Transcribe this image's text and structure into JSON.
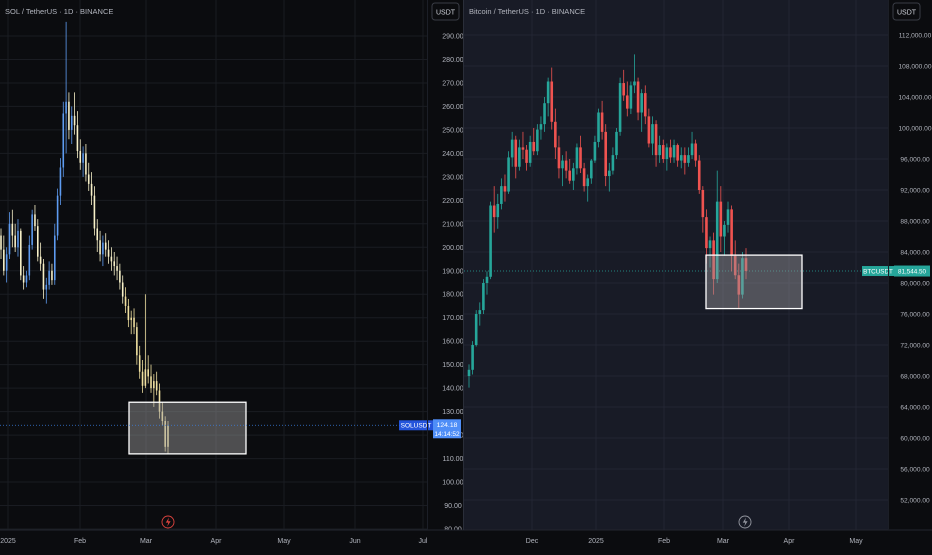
{
  "chart_data": [
    {
      "type": "candlestick",
      "title": "SOL / TetherUS · 1D · BINANCE",
      "currency_label": "USDT",
      "ylim": [
        80,
        300
      ],
      "y_ticks": [
        "290.00",
        "280.00",
        "270.00",
        "260.00",
        "250.00",
        "240.00",
        "230.00",
        "220.00",
        "210.00",
        "200.00",
        "190.00",
        "180.00",
        "170.00",
        "160.00",
        "150.00",
        "140.00",
        "130.00",
        "120.00",
        "110.00",
        "100.00",
        "90.00",
        "80.00"
      ],
      "x_ticks": [
        "2025",
        "Feb",
        "Mar",
        "Apr",
        "May",
        "Jun",
        "Jul"
      ],
      "price_tag": {
        "symbol": "SOLUSDT",
        "price": "124.18",
        "countdown": "14:14:52",
        "value": 124.18
      },
      "highlight_box": {
        "y_top": 134,
        "y_bottom": 112
      },
      "series": [
        {
          "values": [
            [
              205,
              208,
              195,
              199
            ],
            [
              199,
              205,
              188,
              190
            ],
            [
              190,
              200,
              185,
              197
            ],
            [
              197,
              215,
              195,
              210
            ],
            [
              210,
              216,
              200,
              205
            ],
            [
              205,
              210,
              198,
              200
            ],
            [
              200,
              212,
              196,
              207
            ],
            [
              207,
              208,
              186,
              188
            ],
            [
              188,
              192,
              182,
              185
            ],
            [
              185,
              190,
              183,
              188
            ],
            [
              188,
              205,
              186,
              201
            ],
            [
              201,
              216,
              199,
              214
            ],
            [
              214,
              218,
              207,
              209
            ],
            [
              209,
              212,
              194,
              196
            ],
            [
              196,
              202,
              190,
              193
            ],
            [
              193,
              195,
              178,
              182
            ],
            [
              182,
              187,
              176,
              184
            ],
            [
              184,
              194,
              182,
              190
            ],
            [
              190,
              193,
              184,
              186
            ],
            [
              186,
              210,
              184,
              205
            ],
            [
              205,
              225,
              203,
              222
            ],
            [
              222,
              238,
              218,
              234
            ],
            [
              234,
              262,
              230,
              257
            ],
            [
              257,
              296,
              240,
              262
            ],
            [
              262,
              266,
              246,
              250
            ],
            [
              250,
              260,
              244,
              256
            ],
            [
              256,
              266,
              248,
              252
            ],
            [
              252,
              258,
              238,
              241
            ],
            [
              241,
              246,
              233,
              236
            ],
            [
              236,
              243,
              230,
              240
            ],
            [
              240,
              244,
              228,
              231
            ],
            [
              231,
              236,
              224,
              227
            ],
            [
              227,
              232,
              218,
              222
            ],
            [
              222,
              226,
              205,
              208
            ],
            [
              208,
              212,
              198,
              203
            ],
            [
              203,
              207,
              194,
              197
            ],
            [
              197,
              205,
              192,
              202
            ],
            [
              202,
              206,
              196,
              199
            ],
            [
              199,
              203,
              193,
              196
            ],
            [
              196,
              200,
              190,
              194
            ],
            [
              194,
              198,
              188,
              192
            ],
            [
              192,
              196,
              186,
              190
            ],
            [
              190,
              193,
              182,
              185
            ],
            [
              185,
              188,
              176,
              179
            ],
            [
              179,
              183,
              172,
              175
            ],
            [
              175,
              178,
              166,
              169
            ],
            [
              169,
              173,
              163,
              170
            ],
            [
              170,
              174,
              163,
              166
            ],
            [
              166,
              168,
              150,
              154
            ],
            [
              154,
              158,
              144,
              147
            ],
            [
              147,
              152,
              138,
              141
            ],
            [
              141,
              180,
              140,
              148
            ],
            [
              148,
              154,
              142,
              145
            ],
            [
              145,
              150,
              138,
              140
            ],
            [
              140,
              146,
              132,
              143
            ],
            [
              143,
              147,
              137,
              139
            ],
            [
              139,
              142,
              127,
              130
            ],
            [
              130,
              134,
              124,
              126
            ],
            [
              126,
              128,
              113,
              115
            ],
            [
              115,
              126,
              112,
              124
            ]
          ]
        }
      ]
    },
    {
      "type": "candlestick",
      "title": "Bitcoin / TetherUS · 1D · BINANCE",
      "currency_label": "USDT",
      "ylim": [
        49000,
        114000
      ],
      "y_ticks": [
        "112,000.00",
        "108,000.00",
        "104,000.00",
        "100,000.00",
        "96,000.00",
        "92,000.00",
        "88,000.00",
        "84,000.00",
        "80,000.00",
        "76,000.00",
        "72,000.00",
        "68,000.00",
        "64,000.00",
        "60,000.00",
        "56,000.00",
        "52,000.00"
      ],
      "x_ticks": [
        "Dec",
        "2025",
        "Feb",
        "Mar",
        "Apr",
        "May"
      ],
      "price_tag": {
        "symbol": "BTCUSDT",
        "price": "81,544.50",
        "value": 81544.5
      },
      "highlight_box": {
        "y_top": 83600,
        "y_bottom": 76700
      },
      "series": [
        {
          "values": [
            [
              68000,
              69500,
              66500,
              68800
            ],
            [
              68800,
              72500,
              68200,
              72000
            ],
            [
              72000,
              76500,
              71800,
              76000
            ],
            [
              76000,
              77500,
              74500,
              76500
            ],
            [
              76500,
              80500,
              76000,
              80000
            ],
            [
              80000,
              81500,
              78500,
              80800
            ],
            [
              80800,
              90500,
              80500,
              90000
            ],
            [
              90000,
              92500,
              86500,
              88500
            ],
            [
              88500,
              91500,
              87000,
              90200
            ],
            [
              90200,
              93500,
              89500,
              92500
            ],
            [
              92500,
              94000,
              90500,
              91800
            ],
            [
              91800,
              97000,
              91500,
              96200
            ],
            [
              96200,
              99500,
              95000,
              98500
            ],
            [
              98500,
              99000,
              93500,
              95000
            ],
            [
              95000,
              98500,
              94500,
              97500
            ],
            [
              97500,
              99500,
              96000,
              97200
            ],
            [
              97200,
              97800,
              94500,
              95500
            ],
            [
              95500,
              99000,
              95000,
              98200
            ],
            [
              98200,
              100000,
              96500,
              97000
            ],
            [
              97000,
              100500,
              96500,
              99800
            ],
            [
              99800,
              101500,
              98500,
              100500
            ],
            [
              100500,
              104000,
              99500,
              103200
            ],
            [
              103200,
              106500,
              101500,
              106000
            ],
            [
              106000,
              107800,
              99800,
              100800
            ],
            [
              100800,
              102500,
              96000,
              97500
            ],
            [
              97500,
              99000,
              93500,
              94800
            ],
            [
              94800,
              96500,
              92500,
              95800
            ],
            [
              95800,
              97000,
              93500,
              94500
            ],
            [
              94500,
              96000,
              92800,
              93200
            ],
            [
              93200,
              95500,
              92000,
              94800
            ],
            [
              94800,
              98000,
              94000,
              97500
            ],
            [
              97500,
              99000,
              94200,
              94800
            ],
            [
              94800,
              95500,
              91800,
              92500
            ],
            [
              92500,
              94000,
              90500,
              93500
            ],
            [
              93500,
              96000,
              92800,
              95800
            ],
            [
              95800,
              99000,
              95500,
              98200
            ],
            [
              98200,
              102500,
              97500,
              102000
            ],
            [
              102000,
              103500,
              98500,
              99500
            ],
            [
              99500,
              100500,
              92500,
              93800
            ],
            [
              93800,
              95500,
              91800,
              94500
            ],
            [
              94500,
              97500,
              94000,
              96500
            ],
            [
              96500,
              100000,
              96000,
              99500
            ],
            [
              99500,
              106500,
              99000,
              105800
            ],
            [
              105800,
              107500,
              103500,
              104200
            ],
            [
              104200,
              106000,
              101500,
              102500
            ],
            [
              102500,
              106000,
              101800,
              105500
            ],
            [
              105500,
              109500,
              104500,
              106000
            ],
            [
              106000,
              106500,
              101000,
              102000
            ],
            [
              102000,
              105000,
              99500,
              104500
            ],
            [
              104500,
              105500,
              100500,
              101500
            ],
            [
              101500,
              102500,
              97500,
              98000
            ],
            [
              98000,
              101500,
              96500,
              100500
            ],
            [
              100500,
              101000,
              95000,
              96500
            ],
            [
              96500,
              99000,
              95500,
              97800
            ],
            [
              97800,
              98500,
              95500,
              96000
            ],
            [
              96000,
              98000,
              94500,
              97500
            ],
            [
              97500,
              98500,
              95500,
              96200
            ],
            [
              96200,
              98500,
              95500,
              97800
            ],
            [
              97800,
              98000,
              95000,
              95800
            ],
            [
              95800,
              97500,
              94800,
              96500
            ],
            [
              96500,
              97500,
              94000,
              95500
            ],
            [
              95500,
              97500,
              95000,
              96500
            ],
            [
              96500,
              99500,
              96000,
              98000
            ],
            [
              98000,
              98500,
              95000,
              95800
            ],
            [
              95800,
              96500,
              91500,
              92000
            ],
            [
              92000,
              92500,
              86500,
              88500
            ],
            [
              88500,
              89500,
              82500,
              84500
            ],
            [
              84500,
              86000,
              82000,
              85500
            ],
            [
              85500,
              86500,
              78500,
              80500
            ],
            [
              80500,
              94500,
              80000,
              90500
            ],
            [
              90500,
              92500,
              84000,
              86000
            ],
            [
              86000,
              88000,
              83500,
              87500
            ],
            [
              87500,
              90500,
              86500,
              89500
            ],
            [
              89500,
              90000,
              81500,
              83500
            ],
            [
              83500,
              85500,
              80500,
              81000
            ],
            [
              81000,
              82500,
              76700,
              78500
            ],
            [
              78500,
              84000,
              78000,
              83200
            ],
            [
              83200,
              84500,
              80500,
              81544.5
            ]
          ]
        }
      ]
    }
  ]
}
